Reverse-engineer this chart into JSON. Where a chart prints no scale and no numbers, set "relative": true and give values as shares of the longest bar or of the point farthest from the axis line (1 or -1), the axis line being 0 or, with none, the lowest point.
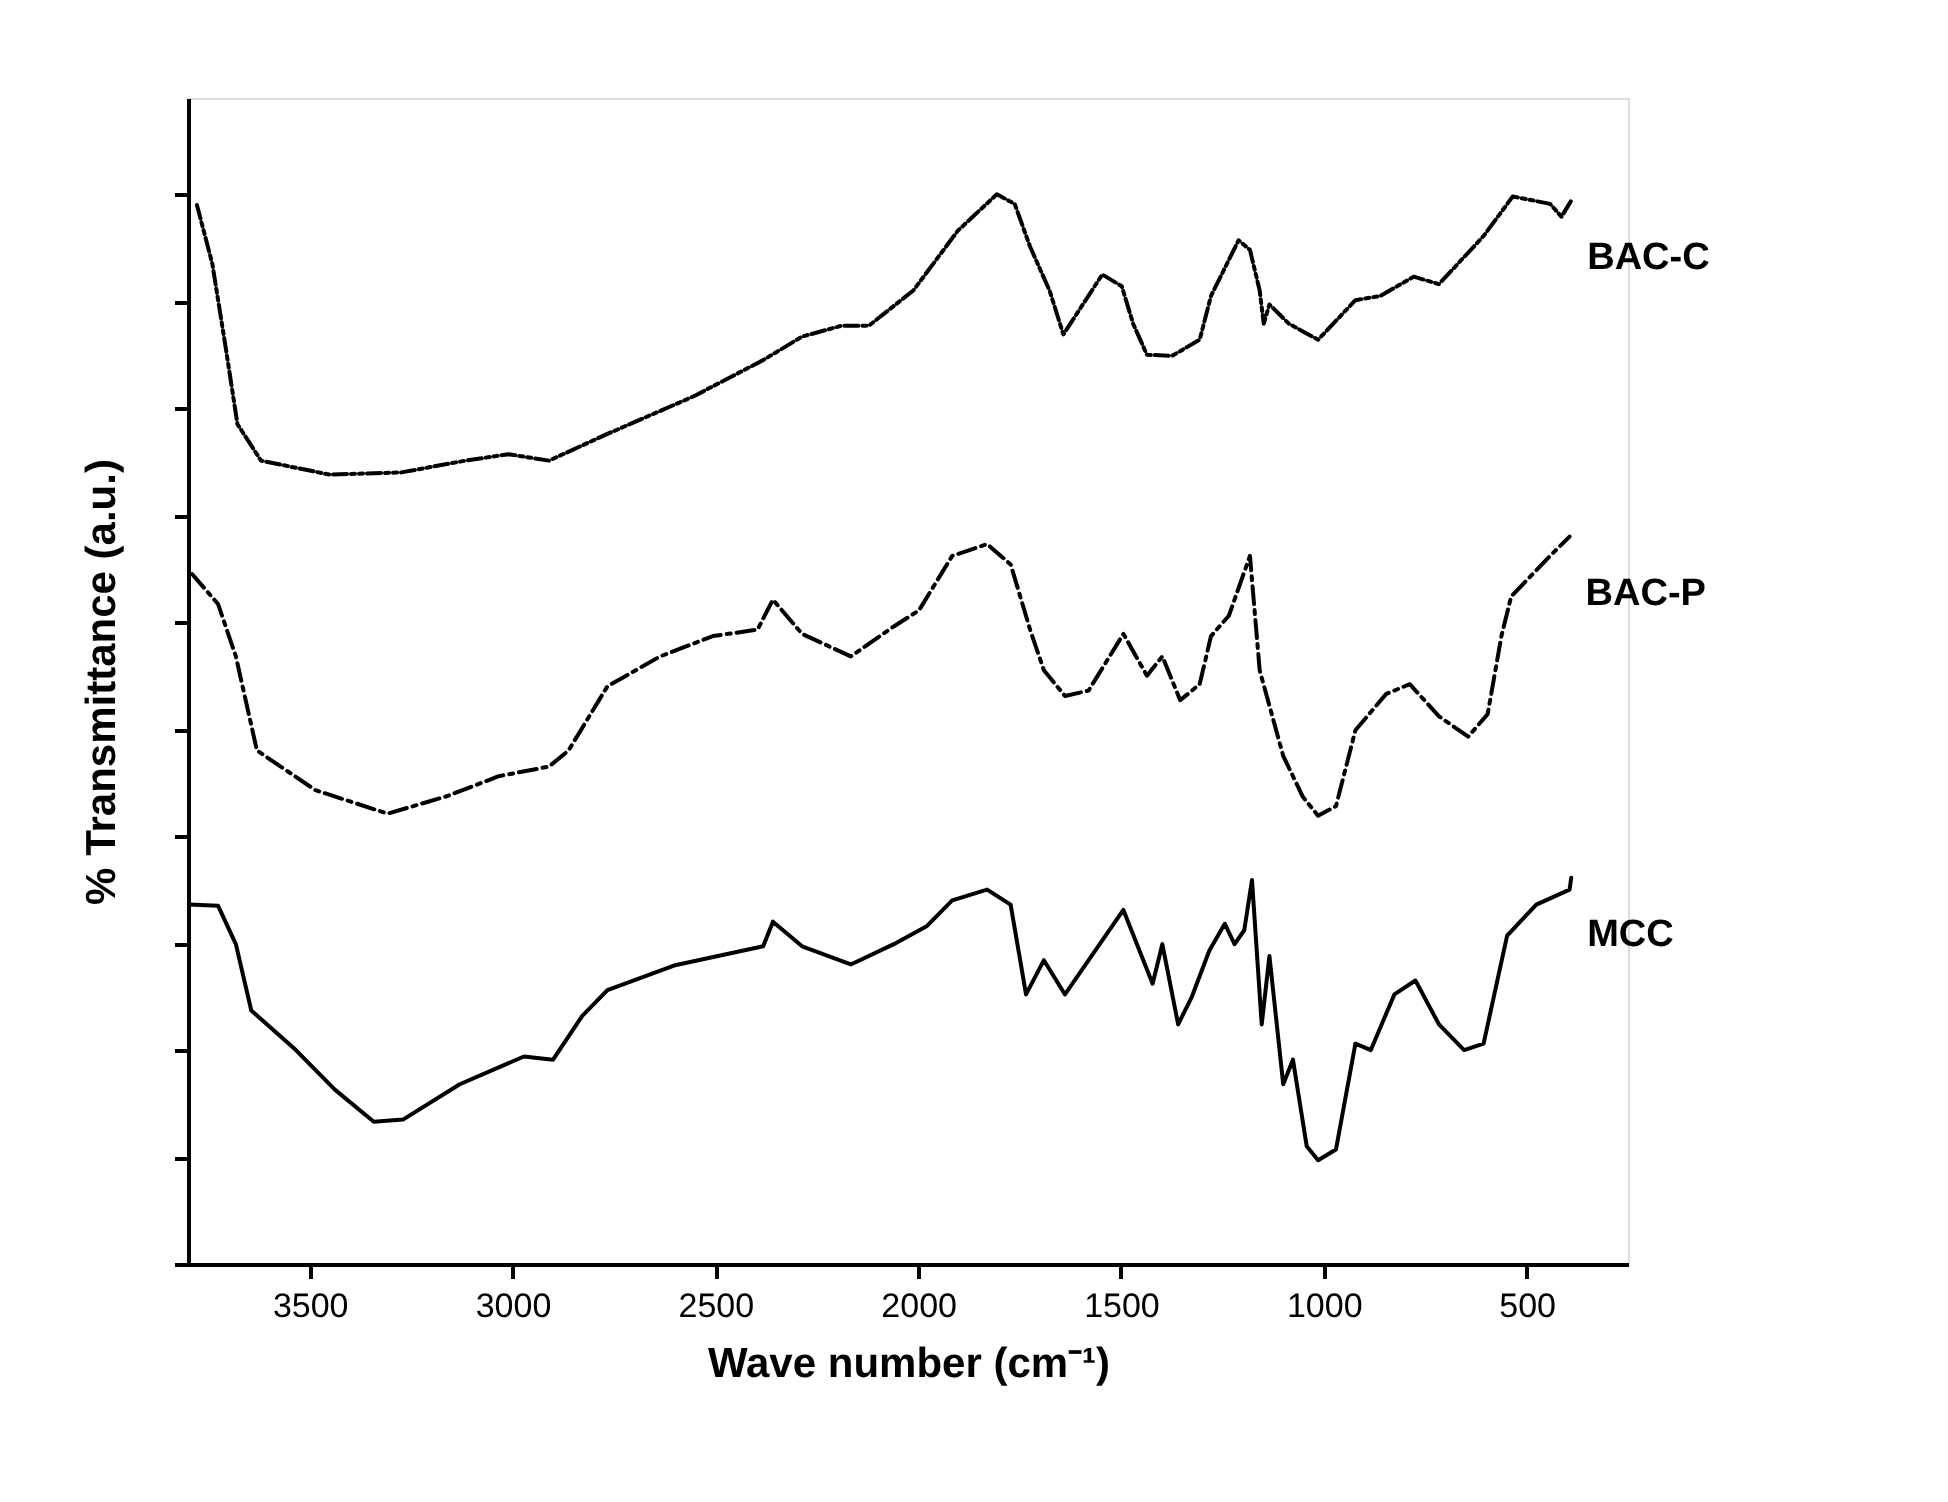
{
  "chart_data": {
    "type": "line",
    "xlabel": "Wave number (cm⁻¹)",
    "ylabel": "% Transmittance (a.u.)",
    "relative": true,
    "xlim": [
      3800,
      250
    ],
    "xticks": [
      3500,
      3000,
      2500,
      2000,
      1500,
      1000,
      500
    ],
    "tick_labels": "x",
    "grid": false,
    "marker": "none",
    "series": [
      {
        "name": "BAC-C",
        "color": "#000000",
        "line_style": "dotted",
        "x": [
          3778,
          3740,
          3706,
          3678,
          3620,
          3452,
          3274,
          3116,
          3010,
          2910,
          2766,
          2554,
          2382,
          2286,
          2190,
          2122,
          2012,
          1902,
          1806,
          1762,
          1724,
          1676,
          1642,
          1546,
          1498,
          1470,
          1436,
          1374,
          1306,
          1278,
          1210,
          1182,
          1158,
          1148,
          1134,
          1086,
          1014,
          922,
          860,
          778,
          716,
          606,
          534,
          442,
          414,
          390
        ],
        "values": [
          0.99,
          0.935,
          0.854,
          0.785,
          0.751,
          0.738,
          0.74,
          0.751,
          0.757,
          0.751,
          0.776,
          0.811,
          0.845,
          0.867,
          0.877,
          0.877,
          0.91,
          0.966,
          1.0,
          0.991,
          0.951,
          0.91,
          0.869,
          0.925,
          0.914,
          0.879,
          0.85,
          0.849,
          0.864,
          0.905,
          0.957,
          0.948,
          0.91,
          0.879,
          0.897,
          0.879,
          0.864,
          0.901,
          0.905,
          0.923,
          0.916,
          0.961,
          0.998,
          0.991,
          0.979,
          0.994
        ]
      },
      {
        "name": "BAC-P",
        "color": "#000000",
        "line_style": "dashed",
        "x": [
          3790,
          3726,
          3682,
          3630,
          3486,
          3308,
          3164,
          3034,
          2910,
          2862,
          2766,
          2636,
          2506,
          2396,
          2358,
          2286,
          2166,
          2060,
          1998,
          1916,
          1830,
          1772,
          1724,
          1690,
          1638,
          1580,
          1494,
          1436,
          1398,
          1354,
          1306,
          1278,
          1234,
          1182,
          1158,
          1100,
          1052,
          1014,
          970,
          922,
          846,
          788,
          716,
          644,
          596,
          562,
          538,
          442,
          394
        ],
        "values": [
          0.645,
          0.617,
          0.568,
          0.48,
          0.443,
          0.421,
          0.437,
          0.456,
          0.465,
          0.48,
          0.54,
          0.568,
          0.587,
          0.593,
          0.621,
          0.589,
          0.568,
          0.596,
          0.611,
          0.662,
          0.673,
          0.654,
          0.593,
          0.555,
          0.531,
          0.536,
          0.589,
          0.55,
          0.568,
          0.527,
          0.542,
          0.587,
          0.606,
          0.662,
          0.555,
          0.475,
          0.437,
          0.419,
          0.428,
          0.499,
          0.533,
          0.542,
          0.512,
          0.493,
          0.514,
          0.587,
          0.624,
          0.662,
          0.68
        ]
      },
      {
        "name": "MCC",
        "color": "#000000",
        "line_style": "solid",
        "x": [
          3798,
          3726,
          3682,
          3644,
          3534,
          3438,
          3342,
          3270,
          3130,
          2972,
          2900,
          2828,
          2766,
          2602,
          2382,
          2358,
          2286,
          2166,
          2060,
          1978,
          1916,
          1830,
          1772,
          1734,
          1690,
          1638,
          1494,
          1422,
          1398,
          1359,
          1325,
          1282,
          1244,
          1220,
          1196,
          1177,
          1153,
          1134,
          1100,
          1076,
          1042,
          1014,
          970,
          922,
          884,
          826,
          774,
          716,
          654,
          606,
          548,
          476,
          394,
          390
        ],
        "values": [
          0.336,
          0.335,
          0.299,
          0.237,
          0.2,
          0.163,
          0.133,
          0.135,
          0.168,
          0.194,
          0.191,
          0.232,
          0.256,
          0.279,
          0.297,
          0.32,
          0.297,
          0.28,
          0.299,
          0.316,
          0.34,
          0.35,
          0.336,
          0.252,
          0.284,
          0.252,
          0.331,
          0.262,
          0.299,
          0.224,
          0.25,
          0.293,
          0.318,
          0.299,
          0.312,
          0.359,
          0.224,
          0.288,
          0.168,
          0.191,
          0.11,
          0.097,
          0.107,
          0.206,
          0.2,
          0.252,
          0.265,
          0.224,
          0.2,
          0.206,
          0.307,
          0.336,
          0.35,
          0.361
        ]
      }
    ]
  }
}
